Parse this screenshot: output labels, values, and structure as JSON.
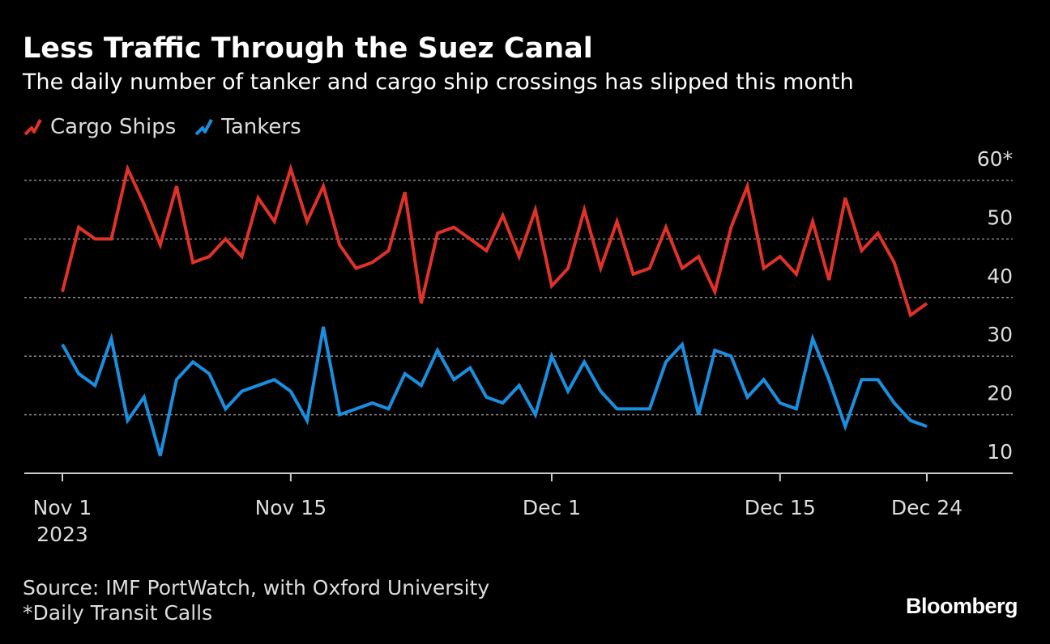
{
  "title": "Less Traffic Through the Suez Canal",
  "subtitle": "The daily number of tanker and cargo ship crossings has slipped this month",
  "legend": {
    "cargo": "Cargo Ships",
    "tankers": "Tankers"
  },
  "source": {
    "line1": "Source: IMF PortWatch, with Oxford University",
    "line2": "*Daily Transit Calls"
  },
  "brand": "Bloomberg",
  "colors": {
    "cargo": "#e03229",
    "tankers": "#1a8fe0",
    "grid": "#888888",
    "background": "#000000"
  },
  "chart_data": {
    "type": "line",
    "title": "Less Traffic Through the Suez Canal",
    "ylabel": "Daily Transit Calls",
    "ylim": [
      10,
      60
    ],
    "yticks": [
      60,
      50,
      40,
      30,
      20,
      10
    ],
    "ytick_labels": [
      "60*",
      "50",
      "40",
      "30",
      "20",
      "10"
    ],
    "grid": true,
    "x_start": "2023-11-01",
    "x": [
      "Nov 1",
      "Nov 2",
      "Nov 3",
      "Nov 4",
      "Nov 5",
      "Nov 6",
      "Nov 7",
      "Nov 8",
      "Nov 9",
      "Nov 10",
      "Nov 11",
      "Nov 12",
      "Nov 13",
      "Nov 14",
      "Nov 15",
      "Nov 16",
      "Nov 17",
      "Nov 18",
      "Nov 19",
      "Nov 20",
      "Nov 21",
      "Nov 22",
      "Nov 23",
      "Nov 24",
      "Nov 25",
      "Nov 26",
      "Nov 27",
      "Nov 28",
      "Nov 29",
      "Nov 30",
      "Dec 1",
      "Dec 2",
      "Dec 3",
      "Dec 4",
      "Dec 5",
      "Dec 6",
      "Dec 7",
      "Dec 8",
      "Dec 9",
      "Dec 10",
      "Dec 11",
      "Dec 12",
      "Dec 13",
      "Dec 14",
      "Dec 15",
      "Dec 16",
      "Dec 17",
      "Dec 18",
      "Dec 19",
      "Dec 20",
      "Dec 21",
      "Dec 22",
      "Dec 23",
      "Dec 24"
    ],
    "xticks": [
      {
        "label": "Nov 1",
        "sublabel": "2023",
        "day": 0
      },
      {
        "label": "Nov 15",
        "sublabel": "",
        "day": 14
      },
      {
        "label": "Dec 1",
        "sublabel": "",
        "day": 30
      },
      {
        "label": "Dec 15",
        "sublabel": "",
        "day": 44
      },
      {
        "label": "Dec 24",
        "sublabel": "",
        "day": 53
      }
    ],
    "series": [
      {
        "name": "Cargo Ships",
        "values": [
          41,
          52,
          50,
          50,
          62,
          56,
          49,
          59,
          46,
          47,
          50,
          47,
          57,
          53,
          62,
          53,
          59,
          49,
          45,
          46,
          48,
          58,
          39,
          51,
          52,
          50,
          48,
          54,
          47,
          55,
          42,
          45,
          55,
          45,
          53,
          44,
          45,
          52,
          45,
          47,
          41,
          52,
          59,
          45,
          47,
          44,
          53,
          43,
          57,
          48,
          51,
          46,
          37,
          39
        ]
      },
      {
        "name": "Tankers",
        "values": [
          32,
          27,
          25,
          33,
          19,
          23,
          13,
          26,
          29,
          27,
          21,
          24,
          25,
          26,
          24,
          19,
          35,
          20,
          21,
          22,
          21,
          27,
          25,
          31,
          26,
          28,
          23,
          22,
          25,
          20,
          30,
          24,
          29,
          24,
          21,
          21,
          21,
          29,
          32,
          20,
          31,
          30,
          23,
          26,
          22,
          21,
          33,
          26,
          18,
          26,
          26,
          22,
          19,
          18
        ]
      }
    ]
  }
}
